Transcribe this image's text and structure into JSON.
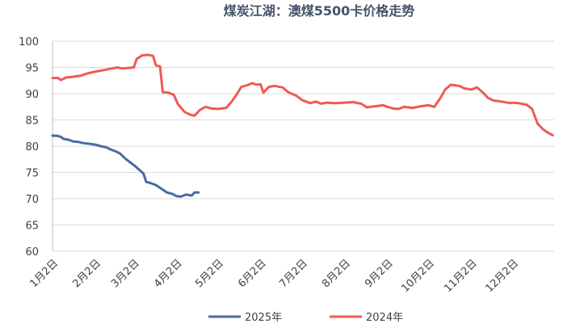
{
  "chart_data": {
    "type": "line",
    "title": "煤炭江湖：澳煤5500卡价格走势",
    "xlabel": "",
    "ylabel": "",
    "ylim": [
      60,
      100
    ],
    "yticks": [
      60,
      65,
      70,
      75,
      80,
      85,
      90,
      95,
      100
    ],
    "x_ticks": [
      "1月2日",
      "2月2日",
      "3月2日",
      "4月2日",
      "5月2日",
      "6月2日",
      "7月2日",
      "8月2日",
      "9月2日",
      "10月2日",
      "11月2日",
      "12月2日"
    ],
    "grid": true,
    "legend_position": "bottom",
    "colors": {
      "2025年": "#4a6aa5",
      "2024年": "#ee5a55"
    },
    "series": [
      {
        "name": "2025年",
        "color": "#4a6aa5",
        "points": [
          [
            "01-02",
            82.0
          ],
          [
            "01-05",
            82.0
          ],
          [
            "01-08",
            81.8
          ],
          [
            "01-10",
            81.4
          ],
          [
            "01-14",
            81.2
          ],
          [
            "01-17",
            80.9
          ],
          [
            "01-21",
            80.8
          ],
          [
            "01-24",
            80.6
          ],
          [
            "01-28",
            80.5
          ],
          [
            "02-02",
            80.3
          ],
          [
            "02-06",
            80.0
          ],
          [
            "02-10",
            79.8
          ],
          [
            "02-13",
            79.4
          ],
          [
            "02-17",
            79.0
          ],
          [
            "02-20",
            78.6
          ],
          [
            "02-24",
            77.6
          ],
          [
            "02-28",
            76.8
          ],
          [
            "03-03",
            76.2
          ],
          [
            "03-06",
            75.5
          ],
          [
            "03-09",
            74.8
          ],
          [
            "03-11",
            73.2
          ],
          [
            "03-14",
            73.0
          ],
          [
            "03-18",
            72.6
          ],
          [
            "03-22",
            71.9
          ],
          [
            "03-26",
            71.2
          ],
          [
            "03-30",
            70.9
          ],
          [
            "04-02",
            70.5
          ],
          [
            "04-05",
            70.4
          ],
          [
            "04-09",
            70.8
          ],
          [
            "04-13",
            70.6
          ],
          [
            "04-15",
            71.2
          ],
          [
            "04-18",
            71.2
          ]
        ]
      },
      {
        "name": "2024年",
        "color": "#ee5a55",
        "points": [
          [
            "01-02",
            93.0
          ],
          [
            "01-06",
            93.0
          ],
          [
            "01-08",
            92.6
          ],
          [
            "01-12",
            93.1
          ],
          [
            "01-16",
            93.2
          ],
          [
            "01-22",
            93.4
          ],
          [
            "01-28",
            93.9
          ],
          [
            "02-02",
            94.2
          ],
          [
            "02-08",
            94.5
          ],
          [
            "02-14",
            94.8
          ],
          [
            "02-18",
            95.0
          ],
          [
            "02-22",
            94.8
          ],
          [
            "02-26",
            94.9
          ],
          [
            "03-02",
            95.0
          ],
          [
            "03-04",
            96.6
          ],
          [
            "03-08",
            97.3
          ],
          [
            "03-12",
            97.4
          ],
          [
            "03-16",
            97.2
          ],
          [
            "03-18",
            95.4
          ],
          [
            "03-21",
            95.2
          ],
          [
            "03-23",
            90.3
          ],
          [
            "03-27",
            90.2
          ],
          [
            "03-31",
            89.8
          ],
          [
            "04-03",
            88.0
          ],
          [
            "04-08",
            86.5
          ],
          [
            "04-12",
            86.0
          ],
          [
            "04-15",
            85.8
          ],
          [
            "04-19",
            86.9
          ],
          [
            "04-23",
            87.5
          ],
          [
            "04-27",
            87.2
          ],
          [
            "05-02",
            87.1
          ],
          [
            "05-08",
            87.3
          ],
          [
            "05-12",
            88.5
          ],
          [
            "05-16",
            90.0
          ],
          [
            "05-19",
            91.3
          ],
          [
            "05-23",
            91.6
          ],
          [
            "05-27",
            92.0
          ],
          [
            "05-30",
            91.7
          ],
          [
            "06-02",
            91.8
          ],
          [
            "06-04",
            90.2
          ],
          [
            "06-08",
            91.3
          ],
          [
            "06-12",
            91.5
          ],
          [
            "06-18",
            91.2
          ],
          [
            "06-22",
            90.3
          ],
          [
            "06-28",
            89.6
          ],
          [
            "07-02",
            88.8
          ],
          [
            "07-08",
            88.2
          ],
          [
            "07-12",
            88.5
          ],
          [
            "07-16",
            88.1
          ],
          [
            "07-20",
            88.3
          ],
          [
            "07-26",
            88.2
          ],
          [
            "08-02",
            88.3
          ],
          [
            "08-08",
            88.4
          ],
          [
            "08-14",
            88.1
          ],
          [
            "08-18",
            87.4
          ],
          [
            "08-24",
            87.6
          ],
          [
            "08-30",
            87.8
          ],
          [
            "09-02",
            87.5
          ],
          [
            "09-06",
            87.2
          ],
          [
            "09-10",
            87.1
          ],
          [
            "09-14",
            87.5
          ],
          [
            "09-20",
            87.3
          ],
          [
            "09-26",
            87.6
          ],
          [
            "10-02",
            87.8
          ],
          [
            "10-06",
            87.5
          ],
          [
            "10-10",
            89.0
          ],
          [
            "10-14",
            90.8
          ],
          [
            "10-18",
            91.7
          ],
          [
            "10-24",
            91.5
          ],
          [
            "10-28",
            91.0
          ],
          [
            "11-02",
            90.8
          ],
          [
            "11-06",
            91.2
          ],
          [
            "11-10",
            90.3
          ],
          [
            "11-14",
            89.2
          ],
          [
            "11-18",
            88.7
          ],
          [
            "11-24",
            88.5
          ],
          [
            "11-30",
            88.2
          ],
          [
            "12-02",
            88.3
          ],
          [
            "12-06",
            88.2
          ],
          [
            "12-12",
            87.9
          ],
          [
            "12-16",
            87.1
          ],
          [
            "12-20",
            84.3
          ],
          [
            "12-24",
            83.2
          ],
          [
            "12-28",
            82.5
          ],
          [
            "12-31",
            82.1
          ]
        ]
      }
    ]
  }
}
